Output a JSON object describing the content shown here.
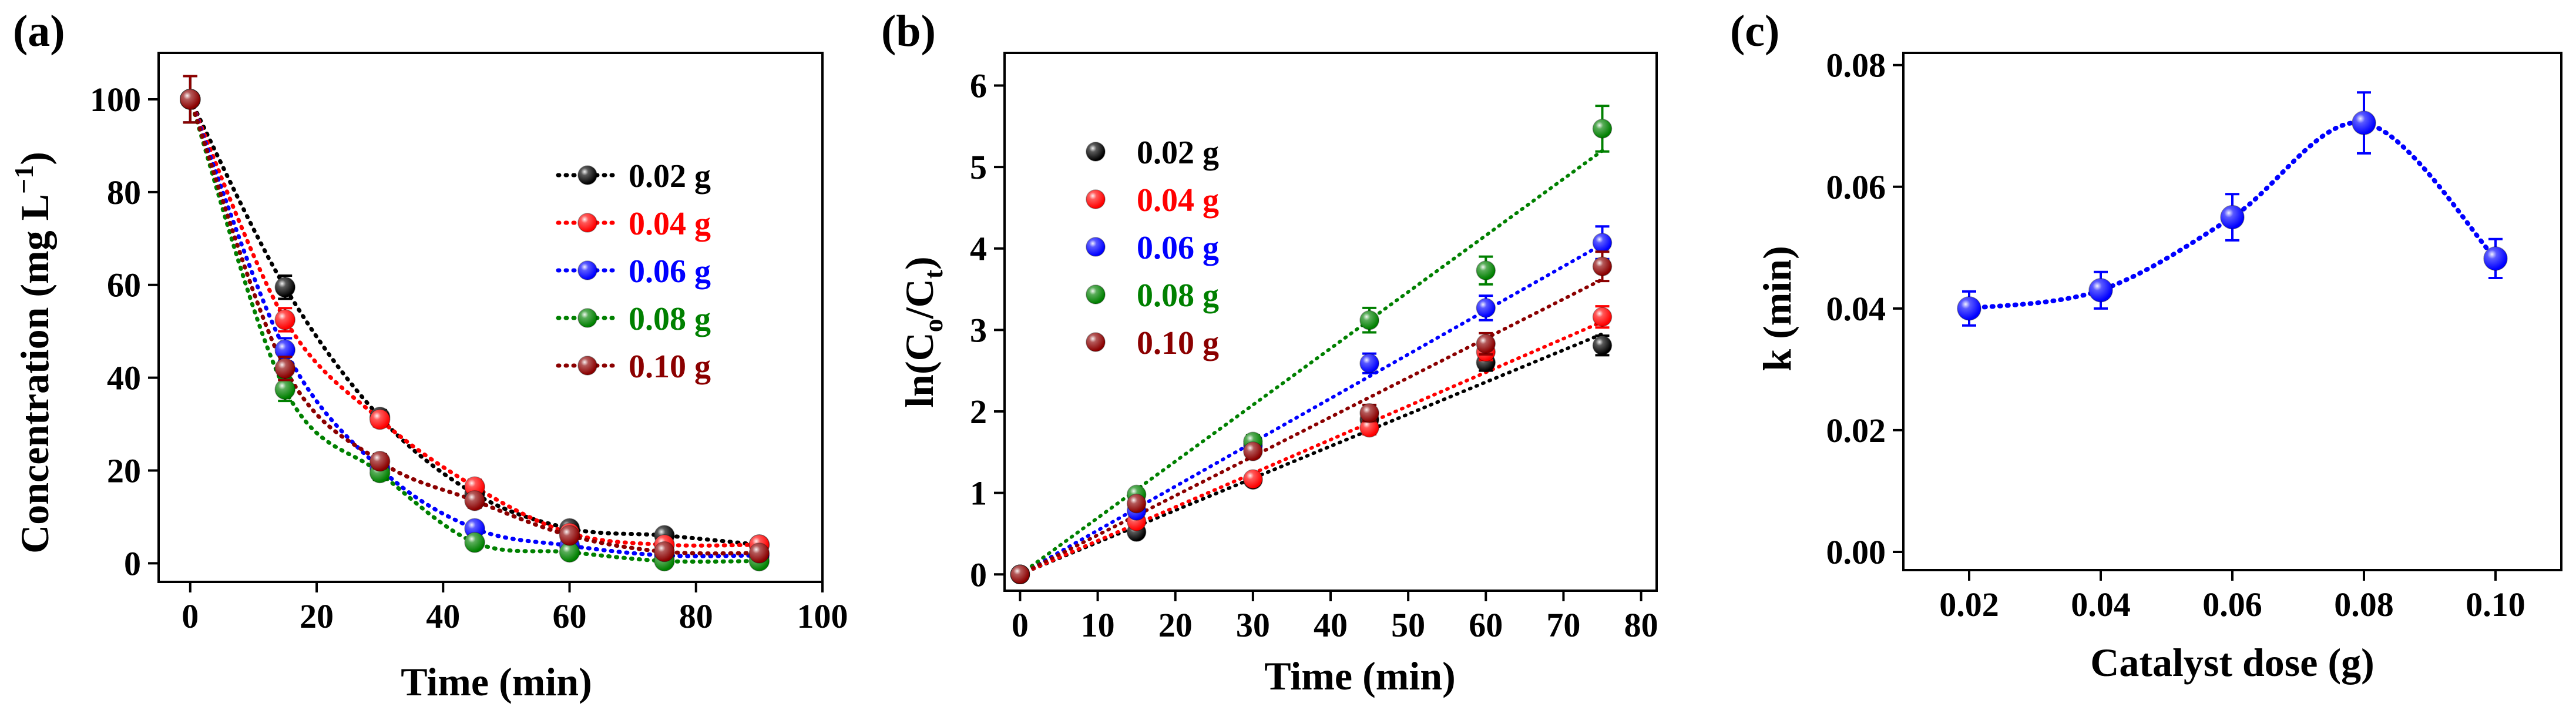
{
  "chart_data": [
    {
      "panel": "(a)",
      "type": "line",
      "xlabel": "Time (min)",
      "ylabel": "Concentration (mg L",
      "ylabel_sup": "−1",
      "ylabel_tail": ")",
      "xlim": [
        -5,
        100
      ],
      "ylim": [
        -4,
        110
      ],
      "xticks": [
        0,
        20,
        40,
        60,
        80,
        100
      ],
      "yticks": [
        0,
        20,
        40,
        60,
        80,
        100
      ],
      "legend_position": "top-right",
      "x": [
        0,
        15,
        30,
        45,
        60,
        75,
        90
      ],
      "series": [
        {
          "name": "0.02 g",
          "color": "#000000",
          "values": [
            100,
            59.5,
            31.5,
            15,
            7.5,
            6,
            4
          ],
          "errors": [
            5,
            2.5,
            1.5,
            1.5,
            1,
            1,
            1
          ]
        },
        {
          "name": "0.04 g",
          "color": "#ff0000",
          "values": [
            100,
            52.5,
            31,
            16.5,
            6.5,
            4,
            4
          ],
          "errors": [
            5,
            2.5,
            1.5,
            1.5,
            1,
            1,
            1
          ]
        },
        {
          "name": "0.06 g",
          "color": "#0000ff",
          "values": [
            100,
            46,
            20.5,
            7.5,
            3.8,
            1.7,
            1.7
          ],
          "errors": [
            5,
            2.5,
            1.5,
            1,
            1,
            1,
            1
          ]
        },
        {
          "name": "0.08 g",
          "color": "#008000",
          "values": [
            100,
            37.5,
            19.5,
            4.5,
            2.4,
            0.5,
            0.5
          ],
          "errors": [
            5,
            2.5,
            1.5,
            1,
            1,
            1,
            1
          ]
        },
        {
          "name": "0.10 g",
          "color": "#8b0000",
          "values": [
            100,
            42,
            22,
            13.5,
            6,
            2.5,
            2.2
          ],
          "errors": [
            5,
            2.5,
            1.5,
            1.5,
            1,
            1,
            1
          ]
        }
      ]
    },
    {
      "panel": "(b)",
      "type": "scatter",
      "xlabel": "Time (min)",
      "ylabel_parts": [
        "ln(C",
        "o",
        "/C",
        "t",
        ")"
      ],
      "xlim": [
        -2,
        82
      ],
      "ylim": [
        -0.2,
        6.4
      ],
      "xticks": [
        0,
        10,
        20,
        30,
        40,
        50,
        60,
        70,
        80
      ],
      "yticks": [
        0,
        1,
        2,
        3,
        4,
        5,
        6
      ],
      "legend_position": "top-left",
      "x": [
        0,
        15,
        30,
        45,
        60,
        75
      ],
      "series": [
        {
          "name": "0.02 g",
          "color": "#000000",
          "values": [
            0,
            0.52,
            1.16,
            1.9,
            2.6,
            2.81
          ],
          "errors": [
            0.03,
            0.05,
            0.06,
            0.08,
            0.1,
            0.12
          ],
          "fit": [
            0,
            2.95
          ]
        },
        {
          "name": "0.04 g",
          "color": "#ff0000",
          "values": [
            0,
            0.65,
            1.17,
            1.8,
            2.73,
            3.16
          ],
          "errors": [
            0.03,
            0.05,
            0.06,
            0.08,
            0.1,
            0.13
          ],
          "fit": [
            0,
            3.1
          ]
        },
        {
          "name": "0.06 g",
          "color": "#0000ff",
          "values": [
            0,
            0.78,
            1.58,
            2.59,
            3.27,
            4.07
          ],
          "errors": [
            0.03,
            0.06,
            0.07,
            0.12,
            0.15,
            0.2
          ],
          "fit": [
            0,
            4.05
          ]
        },
        {
          "name": "0.08 g",
          "color": "#008000",
          "values": [
            0,
            0.98,
            1.63,
            3.12,
            3.73,
            5.47
          ],
          "errors": [
            0.03,
            0.06,
            0.08,
            0.15,
            0.17,
            0.28
          ],
          "fit": [
            0,
            5.2
          ]
        },
        {
          "name": "0.10 g",
          "color": "#8b0000",
          "values": [
            0,
            0.87,
            1.51,
            1.98,
            2.83,
            3.78
          ],
          "errors": [
            0.03,
            0.06,
            0.07,
            0.1,
            0.13,
            0.18
          ],
          "fit": [
            0,
            3.62
          ]
        }
      ]
    },
    {
      "panel": "(c)",
      "type": "line",
      "xlabel": "Catalyst dose (g)",
      "ylabel": "k (min)",
      "categories": [
        "0.02",
        "0.04",
        "0.06",
        "0.08",
        "0.10"
      ],
      "xlim": [
        0.01,
        0.11
      ],
      "ylim": [
        -0.003,
        0.082
      ],
      "yticks": [
        "0.00",
        "0.02",
        "0.04",
        "0.06",
        "0.08"
      ],
      "series": [
        {
          "color": "#0000ff",
          "x": [
            0.02,
            0.04,
            0.06,
            0.08,
            0.1
          ],
          "values": [
            0.04,
            0.043,
            0.055,
            0.0705,
            0.0482
          ],
          "errors": [
            0.0028,
            0.003,
            0.0038,
            0.005,
            0.0032
          ]
        }
      ]
    }
  ]
}
